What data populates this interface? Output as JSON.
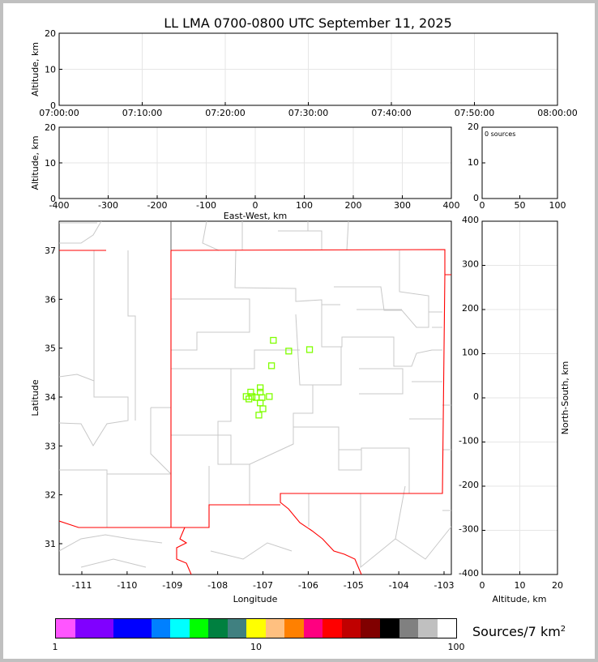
{
  "chart_data": [
    {
      "type": "scatter",
      "title": "LL LMA 0700-0800 UTC September 11, 2025",
      "xlabel": "",
      "ylabel": "Altitude, km",
      "xticks": [
        "07:00:00",
        "07:10:00",
        "07:20:00",
        "07:30:00",
        "07:40:00",
        "07:50:00",
        "08:00:00"
      ],
      "xlim": [
        "07:00:00",
        "08:00:00"
      ],
      "ylim": [
        0,
        20
      ],
      "yticks": [
        0,
        10,
        20
      ],
      "grid": true,
      "points": []
    },
    {
      "type": "scatter",
      "xlabel": "East-West, km",
      "ylabel": "Altitude, km",
      "xlim": [
        -400,
        400
      ],
      "ylim": [
        0,
        20
      ],
      "xticks": [
        -400,
        -300,
        -200,
        -100,
        0,
        100,
        200,
        300,
        400
      ],
      "yticks": [
        0,
        10,
        20
      ],
      "grid": true,
      "points": []
    },
    {
      "type": "histogram",
      "annotation": "0 sources",
      "xlim": [
        0,
        100
      ],
      "ylim": [
        0,
        20
      ],
      "xticks": [
        0,
        50,
        100
      ],
      "yticks": [
        0,
        10,
        20
      ],
      "values": []
    },
    {
      "type": "scatter",
      "xlabel": "Longitude",
      "ylabel": "Latitude",
      "xlim": [
        -111.5,
        -102.85
      ],
      "ylim": [
        30.37,
        37.6
      ],
      "xticks": [
        -111,
        -110,
        -109,
        -108,
        -107,
        -106,
        -105,
        -104,
        -103
      ],
      "yticks": [
        31,
        32,
        33,
        34,
        35,
        36,
        37
      ],
      "marker_color": "#80ff00",
      "marker": "square-open",
      "points": [
        {
          "lon": -106.77,
          "lat": 35.16
        },
        {
          "lon": -106.43,
          "lat": 34.94
        },
        {
          "lon": -105.97,
          "lat": 34.97
        },
        {
          "lon": -106.81,
          "lat": 34.64
        },
        {
          "lon": -107.06,
          "lat": 34.19
        },
        {
          "lon": -107.27,
          "lat": 34.1
        },
        {
          "lon": -107.06,
          "lat": 34.1
        },
        {
          "lon": -107.37,
          "lat": 34.01
        },
        {
          "lon": -107.24,
          "lat": 34.01
        },
        {
          "lon": -107.15,
          "lat": 33.99
        },
        {
          "lon": -107.02,
          "lat": 33.99
        },
        {
          "lon": -106.86,
          "lat": 34.01
        },
        {
          "lon": -107.31,
          "lat": 33.96
        },
        {
          "lon": -107.06,
          "lat": 33.88
        },
        {
          "lon": -107.0,
          "lat": 33.76
        },
        {
          "lon": -107.09,
          "lat": 33.63
        }
      ]
    },
    {
      "type": "scatter",
      "xlabel": "Altitude, km",
      "ylabel": "North-South, km",
      "xlim": [
        0,
        20
      ],
      "ylim": [
        -400,
        400
      ],
      "xticks": [
        0,
        10,
        20
      ],
      "yticks": [
        -400,
        -300,
        -200,
        -100,
        0,
        100,
        200,
        300,
        400
      ],
      "grid": true,
      "points": []
    }
  ],
  "colorbar": {
    "label": "Sources/7 km",
    "label_sup": "2",
    "ticks": [
      "1",
      "10",
      "100"
    ],
    "scale": "log",
    "colors": [
      "#ff55ff",
      "#8000ff",
      "#0000ff",
      "#0080ff",
      "#00ffff",
      "#00ff00",
      "#008040",
      "#408080",
      "#ffff00",
      "#ffc080",
      "#ff8000",
      "#ff0080",
      "#ff0000",
      "#c00000",
      "#800000",
      "#000000",
      "#808080",
      "#c0c0c0",
      "#ffffff"
    ]
  }
}
